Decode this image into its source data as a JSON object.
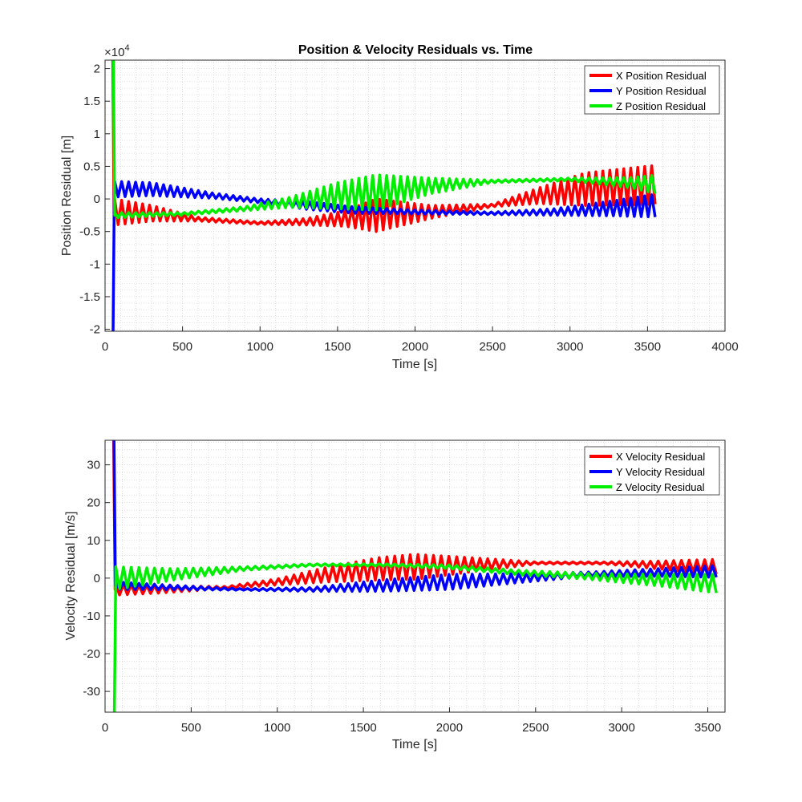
{
  "chart_data": [
    {
      "type": "line",
      "title": "Position & Velocity Residuals vs. Time",
      "xlabel": "Time [s]",
      "ylabel": "Position Residual [m]",
      "y_exponent_label": "×10",
      "y_exponent_power": "4",
      "xlim": [
        0,
        4000
      ],
      "ylim": [
        -2.03,
        2.13
      ],
      "y_scale_note": "values in units of 1e4 m",
      "grid": "minor-dotted",
      "legend_position": "top-right",
      "x_ticks": [
        0,
        500,
        1000,
        1500,
        2000,
        2500,
        3000,
        3500,
        4000
      ],
      "x_tick_labels": [
        "0",
        "500",
        "1000",
        "1500",
        "2000",
        "2500",
        "3000",
        "3500",
        "4000"
      ],
      "y_ticks": [
        -2,
        -1.5,
        -1,
        -0.5,
        0,
        0.5,
        1,
        1.5,
        2
      ],
      "y_tick_labels": [
        "-2",
        "-1.5",
        "-1",
        "-0.5",
        "0",
        "0.5",
        "1",
        "1.5",
        "2"
      ],
      "t_start": 50,
      "t_end": 3570,
      "period": 45,
      "series": [
        {
          "name": "X Position Residual",
          "color": "#ff0000",
          "spike_values": [
            2.13,
            -0.3
          ],
          "envelope": [
            {
              "x": 60,
              "center": -0.2,
              "amp": 0.2
            },
            {
              "x": 300,
              "center": -0.22,
              "amp": 0.12
            },
            {
              "x": 600,
              "center": -0.31,
              "amp": 0.03
            },
            {
              "x": 1000,
              "center": -0.37,
              "amp": 0.02
            },
            {
              "x": 1300,
              "center": -0.35,
              "amp": 0.05
            },
            {
              "x": 1550,
              "center": -0.3,
              "amp": 0.12
            },
            {
              "x": 1750,
              "center": -0.25,
              "amp": 0.25
            },
            {
              "x": 2100,
              "center": -0.2,
              "amp": 0.1
            },
            {
              "x": 2500,
              "center": -0.1,
              "amp": 0.02
            },
            {
              "x": 2800,
              "center": 0.05,
              "amp": 0.12
            },
            {
              "x": 3100,
              "center": 0.15,
              "amp": 0.25
            },
            {
              "x": 3570,
              "center": 0.22,
              "amp": 0.3
            }
          ]
        },
        {
          "name": "Y Position Residual",
          "color": "#0000ff",
          "spike_values": [
            -2.03,
            0.15
          ],
          "envelope": [
            {
              "x": 60,
              "center": 0.15,
              "amp": 0.12
            },
            {
              "x": 300,
              "center": 0.15,
              "amp": 0.1
            },
            {
              "x": 700,
              "center": 0.05,
              "amp": 0.04
            },
            {
              "x": 1000,
              "center": -0.03,
              "amp": 0.03
            },
            {
              "x": 1300,
              "center": -0.1,
              "amp": 0.06
            },
            {
              "x": 1600,
              "center": -0.17,
              "amp": 0.05
            },
            {
              "x": 2000,
              "center": -0.2,
              "amp": 0.03
            },
            {
              "x": 2500,
              "center": -0.22,
              "amp": 0.02
            },
            {
              "x": 2900,
              "center": -0.2,
              "amp": 0.05
            },
            {
              "x": 3300,
              "center": -0.14,
              "amp": 0.12
            },
            {
              "x": 3570,
              "center": -0.1,
              "amp": 0.18
            }
          ]
        },
        {
          "name": "Z Position Residual",
          "color": "#00ee00",
          "spike_values": [
            2.13,
            -0.25
          ],
          "envelope": [
            {
              "x": 60,
              "center": -0.25,
              "amp": 0.04
            },
            {
              "x": 500,
              "center": -0.23,
              "amp": 0.02
            },
            {
              "x": 900,
              "center": -0.15,
              "amp": 0.03
            },
            {
              "x": 1200,
              "center": -0.05,
              "amp": 0.08
            },
            {
              "x": 1500,
              "center": 0.05,
              "amp": 0.2
            },
            {
              "x": 1750,
              "center": 0.1,
              "amp": 0.27
            },
            {
              "x": 2100,
              "center": 0.2,
              "amp": 0.12
            },
            {
              "x": 2500,
              "center": 0.27,
              "amp": 0.02
            },
            {
              "x": 3000,
              "center": 0.3,
              "amp": 0.02
            },
            {
              "x": 3400,
              "center": 0.25,
              "amp": 0.08
            },
            {
              "x": 3570,
              "center": 0.22,
              "amp": 0.15
            }
          ]
        }
      ]
    },
    {
      "type": "line",
      "title": "",
      "xlabel": "Time [s]",
      "ylabel": "Velocity Residual [m/s]",
      "xlim": [
        0,
        3600
      ],
      "ylim": [
        -35.5,
        36.5
      ],
      "grid": "minor-dotted",
      "legend_position": "top-right",
      "x_ticks": [
        0,
        500,
        1000,
        1500,
        2000,
        2500,
        3000,
        3500
      ],
      "x_tick_labels": [
        "0",
        "500",
        "1000",
        "1500",
        "2000",
        "2500",
        "3000",
        "3500"
      ],
      "y_ticks": [
        -30,
        -20,
        -10,
        0,
        10,
        20,
        30
      ],
      "y_tick_labels": [
        "-30",
        "-20",
        "-10",
        "0",
        "10",
        "20",
        "30"
      ],
      "t_start": 50,
      "t_end": 3570,
      "period": 45,
      "series": [
        {
          "name": "X Velocity Residual",
          "color": "#ff0000",
          "spike_values": [
            36.5,
            -3
          ],
          "envelope": [
            {
              "x": 60,
              "center": -3,
              "amp": 1.5
            },
            {
              "x": 300,
              "center": -3,
              "amp": 1
            },
            {
              "x": 700,
              "center": -2.5,
              "amp": 0.3
            },
            {
              "x": 1000,
              "center": -1,
              "amp": 0.8
            },
            {
              "x": 1300,
              "center": 1,
              "amp": 2
            },
            {
              "x": 1600,
              "center": 2.5,
              "amp": 3
            },
            {
              "x": 1800,
              "center": 3,
              "amp": 3.3
            },
            {
              "x": 2100,
              "center": 3.5,
              "amp": 2
            },
            {
              "x": 2500,
              "center": 4,
              "amp": 0.3
            },
            {
              "x": 2900,
              "center": 4,
              "amp": 0.3
            },
            {
              "x": 3200,
              "center": 3.5,
              "amp": 1
            },
            {
              "x": 3570,
              "center": 3,
              "amp": 2
            }
          ]
        },
        {
          "name": "Y Velocity Residual",
          "color": "#0000ff",
          "spike_values": [
            36.5,
            -2
          ],
          "envelope": [
            {
              "x": 60,
              "center": -2,
              "amp": 1
            },
            {
              "x": 400,
              "center": -2.5,
              "amp": 0.6
            },
            {
              "x": 800,
              "center": -3,
              "amp": 0.2
            },
            {
              "x": 1200,
              "center": -3,
              "amp": 0.5
            },
            {
              "x": 1600,
              "center": -2,
              "amp": 1.5
            },
            {
              "x": 2000,
              "center": -1,
              "amp": 2
            },
            {
              "x": 2400,
              "center": 0,
              "amp": 1.2
            },
            {
              "x": 2800,
              "center": 1,
              "amp": 0.6
            },
            {
              "x": 3200,
              "center": 1.5,
              "amp": 1
            },
            {
              "x": 3570,
              "center": 1.8,
              "amp": 1.6
            }
          ]
        },
        {
          "name": "Z Velocity Residual",
          "color": "#00ee00",
          "spike_values": [
            -35.5,
            0
          ],
          "envelope": [
            {
              "x": 60,
              "center": 0,
              "amp": 3
            },
            {
              "x": 400,
              "center": 1,
              "amp": 1.5
            },
            {
              "x": 800,
              "center": 2.5,
              "amp": 0.5
            },
            {
              "x": 1200,
              "center": 3.5,
              "amp": 0.3
            },
            {
              "x": 1600,
              "center": 3.5,
              "amp": 0.3
            },
            {
              "x": 2000,
              "center": 3,
              "amp": 0.5
            },
            {
              "x": 2400,
              "center": 1.5,
              "amp": 0.6
            },
            {
              "x": 2800,
              "center": 0.5,
              "amp": 0.8
            },
            {
              "x": 3200,
              "center": -0.5,
              "amp": 1.5
            },
            {
              "x": 3570,
              "center": -1.5,
              "amp": 2.5
            }
          ]
        }
      ]
    }
  ]
}
